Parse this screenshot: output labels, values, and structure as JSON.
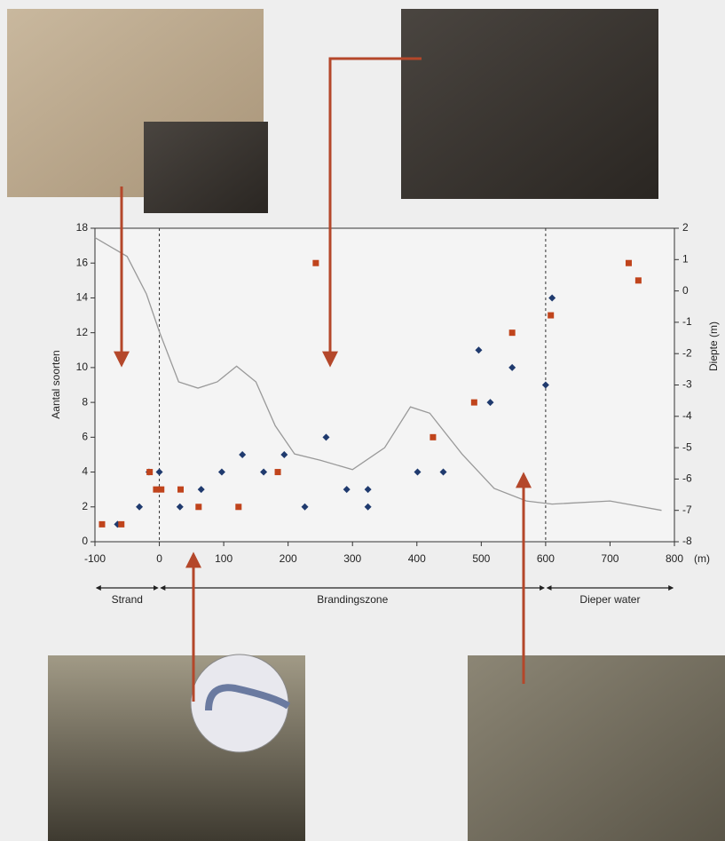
{
  "chart_data": {
    "type": "scatter",
    "y_label": "Aantal soorten",
    "y2_label": "Diepte (m)",
    "x_unit": "(m)",
    "xlim": [
      -100,
      800
    ],
    "xticks": [
      -100,
      0,
      100,
      200,
      300,
      400,
      500,
      600,
      700,
      800
    ],
    "ylim": [
      0,
      18
    ],
    "yticks": [
      0,
      2,
      4,
      6,
      8,
      10,
      12,
      14,
      16,
      18
    ],
    "y2lim": [
      -8,
      2
    ],
    "y2ticks": [
      2,
      1,
      0,
      -1,
      -2,
      -3,
      -4,
      -5,
      -6,
      -7,
      -8
    ],
    "dividers": [
      0,
      600
    ],
    "zones": [
      {
        "label": "Strand",
        "from": -100,
        "to": 0
      },
      {
        "label": "Brandingszone",
        "from": 0,
        "to": 600
      },
      {
        "label": "Dieper water",
        "from": 600,
        "to": 800
      }
    ],
    "series": [
      {
        "marker": "diamond",
        "color": "#1f3a6e",
        "x": [
          -65,
          -31,
          -16,
          0,
          32,
          65,
          97,
          129,
          162,
          194,
          226,
          259,
          291,
          324,
          324,
          401,
          441,
          496,
          514,
          548,
          600,
          610
        ],
        "values": [
          1,
          2,
          4,
          4,
          2,
          3,
          4,
          5,
          4,
          5,
          2,
          6,
          3,
          3,
          2,
          4,
          4,
          11,
          8,
          10,
          9,
          14
        ]
      },
      {
        "marker": "square",
        "color": "#c0441c",
        "x": [
          -89,
          -59,
          -15,
          -5,
          3,
          33,
          61,
          123,
          184,
          243,
          425,
          489,
          548,
          608,
          729,
          744
        ],
        "values": [
          1,
          1,
          4,
          3,
          3,
          3,
          2,
          2,
          4,
          16,
          6,
          8,
          12,
          13,
          16,
          15
        ]
      },
      {
        "marker": "line",
        "axis": "y2",
        "color": "#999999",
        "x": [
          -100,
          -50,
          -20,
          0,
          30,
          60,
          90,
          120,
          150,
          180,
          210,
          250,
          300,
          350,
          390,
          420,
          470,
          520,
          570,
          610,
          700,
          780
        ],
        "values": [
          1.7,
          1.1,
          -0.1,
          -1.3,
          -2.9,
          -3.1,
          -2.9,
          -2.4,
          -2.9,
          -4.3,
          -5.2,
          -5.4,
          -5.7,
          -5.0,
          -3.7,
          -3.9,
          -5.2,
          -6.3,
          -6.7,
          -6.8,
          -6.7,
          -7.0
        ]
      }
    ]
  }
}
